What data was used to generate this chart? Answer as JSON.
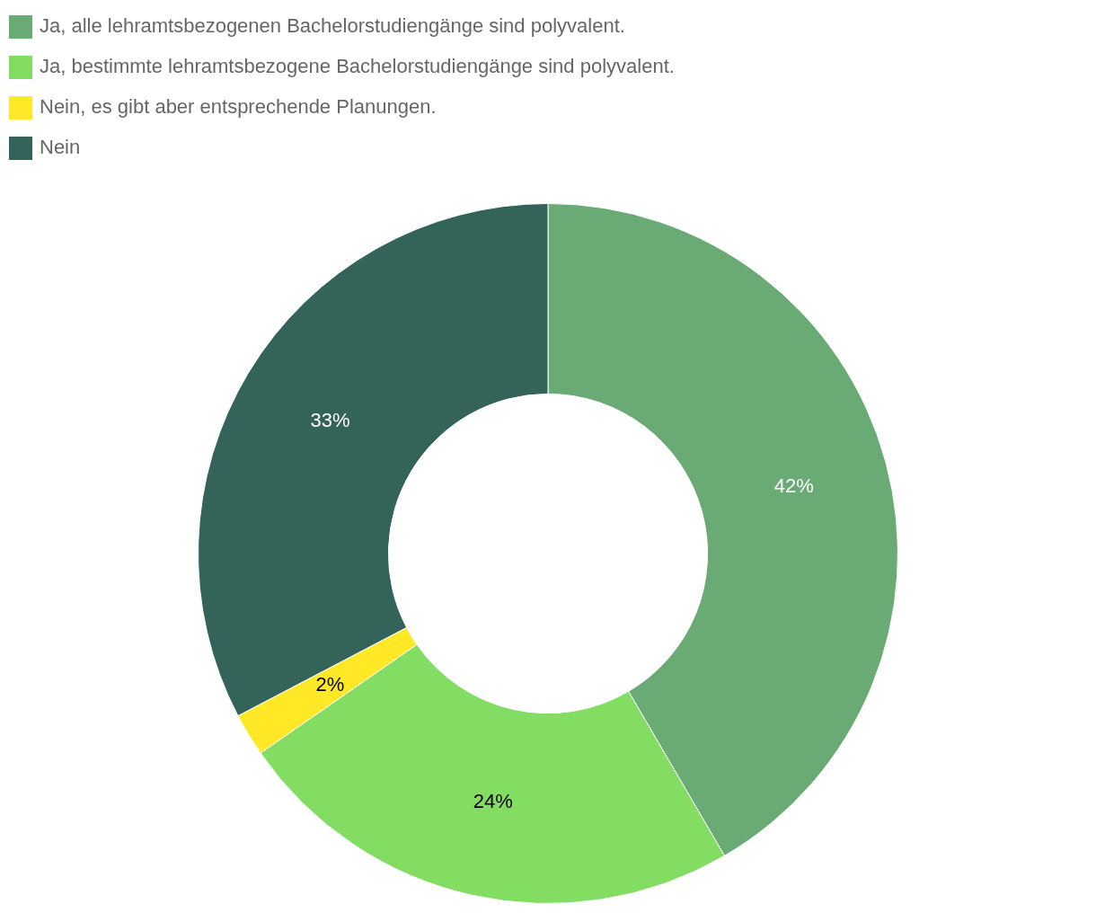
{
  "chart_data": {
    "type": "donut",
    "categories": [
      "Ja, alle lehramtsbezogenen Bachelorstudiengänge sind polyvalent.",
      "Ja, bestimmte lehramtsbezogene Bachelorstudiengänge sind polyvalent.",
      "Nein, es gibt aber entsprechende Planungen.",
      "Nein"
    ],
    "values": [
      42,
      24,
      2,
      33
    ],
    "colors": [
      "#6aaa75",
      "#84dd63",
      "#ffe926",
      "#336359"
    ],
    "value_labels": [
      "42%",
      "24%",
      "2%",
      "33%"
    ],
    "legend": "top left"
  }
}
